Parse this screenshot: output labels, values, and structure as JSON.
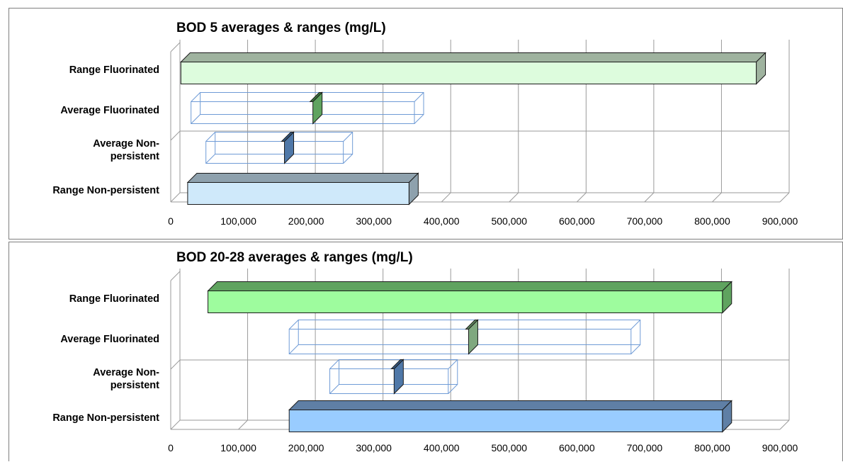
{
  "chart_data": [
    {
      "type": "bar",
      "subtype": "3d-floating-range",
      "title": "BOD 5 averages & ranges (mg/L)",
      "categories": [
        "Range Fluorinated",
        "Average Fluorinated",
        "Average Non-persistent",
        "Range Non-persistent"
      ],
      "category_lines": [
        [
          "Range Fluorinated"
        ],
        [
          "Average Fluorinated"
        ],
        [
          "Average Non-",
          "persistent"
        ],
        [
          "Range Non-persistent"
        ]
      ],
      "bars": [
        {
          "category": "Range Fluorinated",
          "start": 15000,
          "end": 865000,
          "style": "solid",
          "color": "#ddfcdd",
          "dark": "#9fb39f"
        },
        {
          "category": "Average Fluorinated",
          "start": 30000,
          "end": 360000,
          "marker": 210000,
          "style": "outline",
          "color": "#5fa35f",
          "dark": "#3d7a3d"
        },
        {
          "category": "Average Non-persistent",
          "start": 52000,
          "end": 255000,
          "marker": 168000,
          "style": "outline",
          "color": "#4f78a8",
          "dark": "#365a85"
        },
        {
          "category": "Range Non-persistent",
          "start": 25000,
          "end": 352000,
          "style": "solid",
          "color": "#cfe9fa",
          "dark": "#8ea1ad"
        }
      ],
      "ticks": [
        "0",
        "100,000",
        "200,000",
        "300,000",
        "400,000",
        "500,000",
        "600,000",
        "700,000",
        "800,000",
        "900,000"
      ],
      "xlim": [
        0,
        900000
      ],
      "grid": true
    },
    {
      "type": "bar",
      "subtype": "3d-floating-range",
      "title": "BOD  20-28 averages & ranges (mg/L)",
      "categories": [
        "Range Fluorinated",
        "Average Fluorinated",
        "Average Non-persistent",
        "Range Non-persistent"
      ],
      "category_lines": [
        [
          "Range Fluorinated"
        ],
        [
          "Average Fluorinated"
        ],
        [
          "Average Non-",
          "persistent"
        ],
        [
          "Range Non-persistent"
        ]
      ],
      "bars": [
        {
          "category": "Range Fluorinated",
          "start": 55000,
          "end": 815000,
          "style": "solid",
          "color": "#9efc9e",
          "dark": "#5fa35f"
        },
        {
          "category": "Average Fluorinated",
          "start": 175000,
          "end": 680000,
          "marker": 440000,
          "style": "outline",
          "color": "#7fa87f",
          "dark": "#5f8a5f"
        },
        {
          "category": "Average Non-persistent",
          "start": 235000,
          "end": 410000,
          "marker": 330000,
          "style": "outline",
          "color": "#4f78a8",
          "dark": "#365a85"
        },
        {
          "category": "Range Non-persistent",
          "start": 175000,
          "end": 815000,
          "style": "solid",
          "color": "#99ccff",
          "dark": "#5f7fa5"
        }
      ],
      "ticks": [
        "0",
        "100,000",
        "200,000",
        "300,000",
        "400,000",
        "500,000",
        "600,000",
        "700,000",
        "800,000",
        "900,000"
      ],
      "xlim": [
        0,
        900000
      ],
      "grid": true
    }
  ]
}
